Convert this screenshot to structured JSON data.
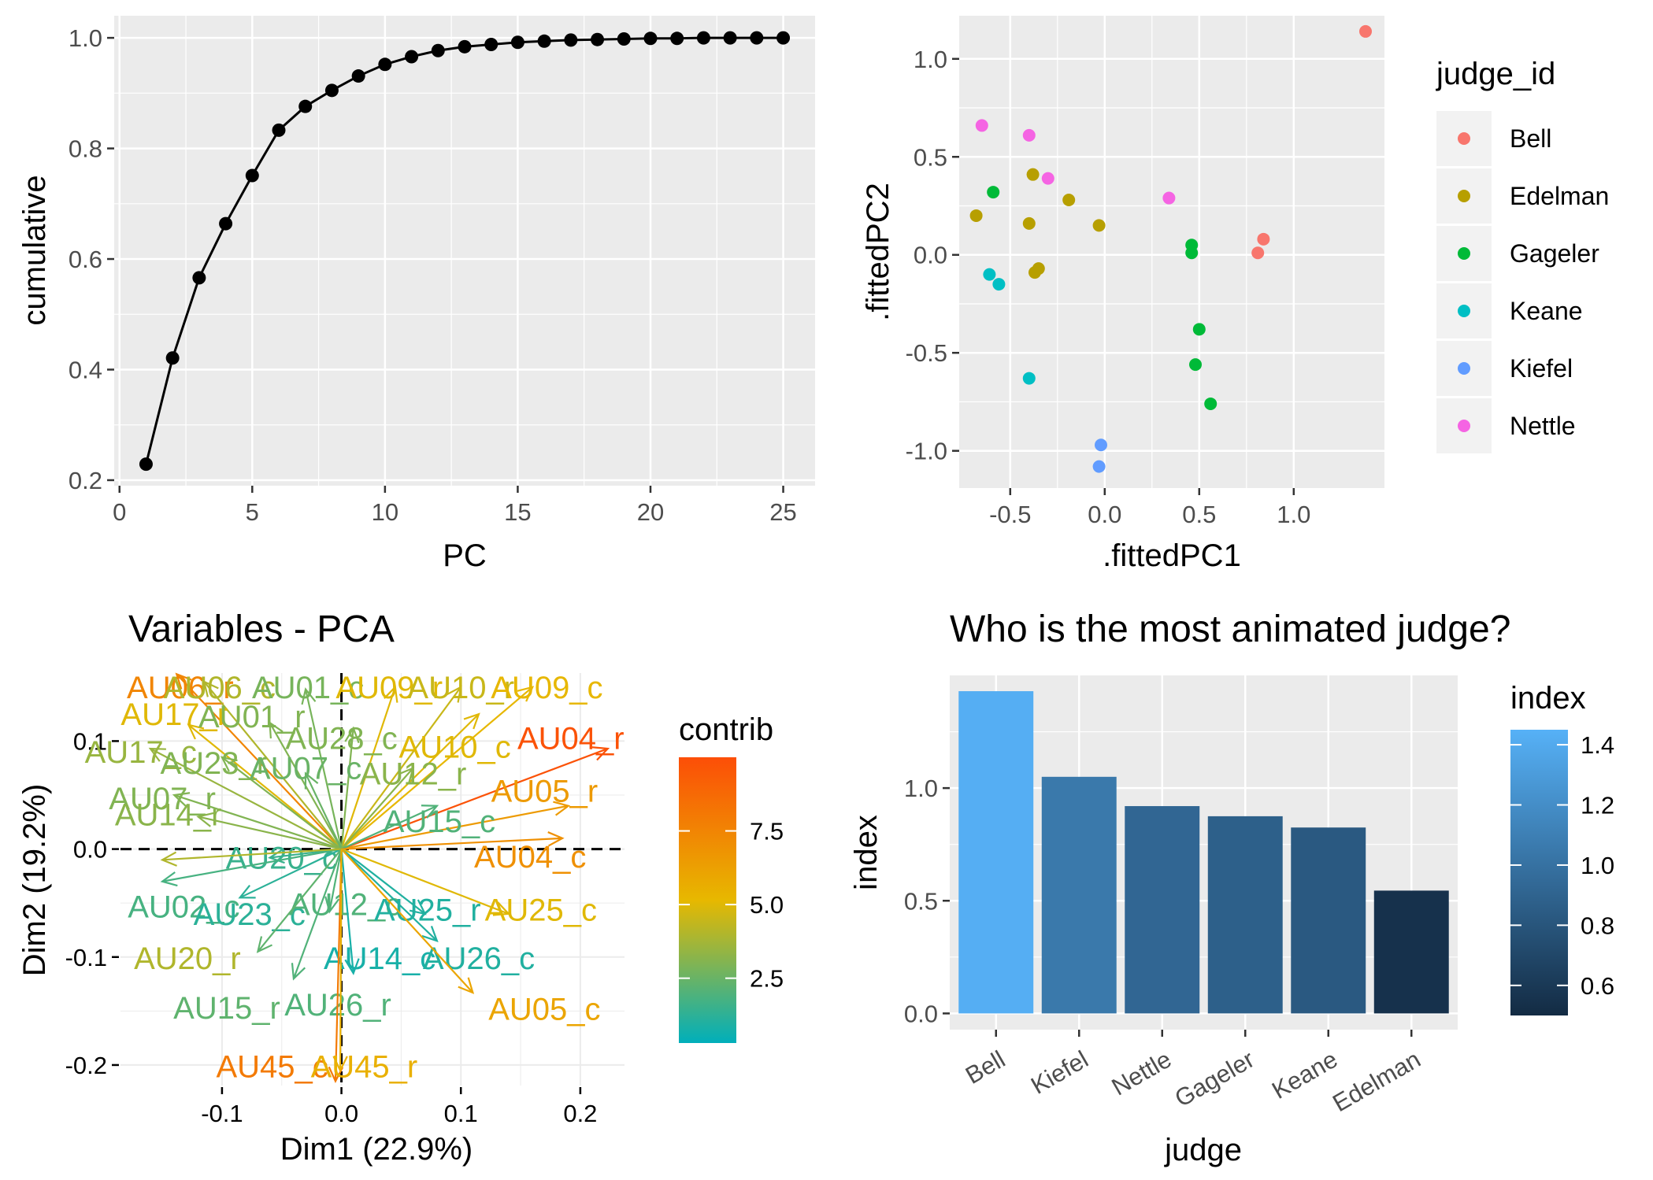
{
  "chart_data": [
    {
      "type": "line",
      "title": "",
      "xlabel": "PC",
      "ylabel": "cumulative",
      "x": [
        1,
        2,
        3,
        4,
        5,
        6,
        7,
        8,
        9,
        10,
        11,
        12,
        13,
        14,
        15,
        16,
        17,
        18,
        19,
        20,
        21,
        22,
        23,
        24,
        25
      ],
      "y": [
        0.229,
        0.421,
        0.566,
        0.664,
        0.751,
        0.833,
        0.876,
        0.905,
        0.931,
        0.952,
        0.966,
        0.977,
        0.984,
        0.988,
        0.992,
        0.994,
        0.996,
        0.997,
        0.998,
        0.999,
        0.999,
        1.0,
        1.0,
        1.0,
        1.0
      ],
      "xlim": [
        -0.2,
        26.2
      ],
      "ylim": [
        0.19,
        1.04
      ],
      "x_ticks": [
        0,
        5,
        10,
        15,
        20,
        25
      ],
      "x_tick_labels": [
        "0",
        "5",
        "10",
        "15",
        "20",
        "25"
      ],
      "y_ticks": [
        0.2,
        0.4,
        0.6,
        0.8,
        1.0
      ],
      "y_tick_labels": [
        "0.2",
        "0.4",
        "0.6",
        "0.8",
        "1.0"
      ],
      "grid": true
    },
    {
      "type": "scatter",
      "title": "",
      "xlabel": ".fittedPC1",
      "ylabel": ".fittedPC2",
      "xlim": [
        -0.77,
        1.48
      ],
      "ylim": [
        -1.19,
        1.22
      ],
      "x_ticks": [
        -0.5,
        0,
        0.5,
        1.0
      ],
      "x_tick_labels": [
        "-0.5",
        "0.0",
        "0.5",
        "1.0"
      ],
      "y_ticks": [
        -1.0,
        -0.5,
        0,
        0.5,
        1.0
      ],
      "y_tick_labels": [
        "-1.0",
        "-0.5",
        "0.0",
        "0.5",
        "1.0"
      ],
      "legend_title": "judge_id",
      "legend_position": "right",
      "series": [
        {
          "name": "Bell",
          "color": "#F8766D",
          "points": [
            [
              1.38,
              1.14
            ],
            [
              0.84,
              0.08
            ],
            [
              0.81,
              0.01
            ]
          ]
        },
        {
          "name": "Edelman",
          "color": "#B79F00",
          "points": [
            [
              -0.68,
              0.2
            ],
            [
              -0.38,
              0.41
            ],
            [
              -0.4,
              0.16
            ],
            [
              -0.19,
              0.28
            ],
            [
              -0.03,
              0.15
            ],
            [
              -0.35,
              -0.07
            ],
            [
              -0.37,
              -0.09
            ]
          ]
        },
        {
          "name": "Gageler",
          "color": "#00BA38",
          "points": [
            [
              -0.59,
              0.32
            ],
            [
              0.46,
              0.05
            ],
            [
              0.46,
              0.01
            ],
            [
              0.5,
              -0.38
            ],
            [
              0.48,
              -0.56
            ],
            [
              0.56,
              -0.76
            ]
          ]
        },
        {
          "name": "Keane",
          "color": "#00BFC4",
          "points": [
            [
              -0.61,
              -0.1
            ],
            [
              -0.56,
              -0.15
            ],
            [
              -0.4,
              -0.63
            ]
          ]
        },
        {
          "name": "Kiefel",
          "color": "#619CFF",
          "points": [
            [
              -0.02,
              -0.97
            ],
            [
              -0.03,
              -1.08
            ]
          ]
        },
        {
          "name": "Nettle",
          "color": "#F564E3",
          "points": [
            [
              -0.65,
              0.66
            ],
            [
              -0.4,
              0.61
            ],
            [
              -0.3,
              0.39
            ],
            [
              0.34,
              0.29
            ]
          ]
        }
      ],
      "grid": true
    },
    {
      "type": "scatter",
      "subtype": "pca-variable-arrows",
      "title": "Variables - PCA",
      "xlabel": "Dim1 (22.9%)",
      "ylabel": "Dim2 (19.2%)",
      "xlim": [
        -0.185,
        0.237
      ],
      "ylim": [
        -0.219,
        0.163
      ],
      "x_ticks": [
        -0.1,
        0,
        0.1,
        0.2
      ],
      "x_tick_labels": [
        "-0.1",
        "0.0",
        "0.1",
        "0.2"
      ],
      "y_ticks": [
        -0.2,
        -0.1,
        0,
        0.1
      ],
      "y_tick_labels": [
        "-0.2",
        "-0.1",
        "0.0",
        "0.1"
      ],
      "legend_title": "contrib",
      "legend_ticks": [
        2.5,
        5.0,
        7.5
      ],
      "legend_tick_labels": [
        "2.5",
        "5.0",
        "7.5"
      ],
      "contrib_range": [
        0.3,
        10.0
      ],
      "color_scale": [
        "#00AFBB",
        "#E7B800",
        "#FC4E07"
      ],
      "arrows": [
        {
          "label": "AU06_r",
          "x": -0.138,
          "y": 0.162,
          "contrib": 7.5,
          "lx": -0.135,
          "ly": 0.15
        },
        {
          "label": "AU06_c",
          "x": -0.115,
          "y": 0.155,
          "contrib": 4.0,
          "lx": -0.102,
          "ly": 0.15
        },
        {
          "label": "AU01_c",
          "x": -0.03,
          "y": 0.148,
          "contrib": 2.8,
          "lx": -0.028,
          "ly": 0.15
        },
        {
          "label": "AU09_r",
          "x": 0.045,
          "y": 0.15,
          "contrib": 5.0,
          "lx": 0.04,
          "ly": 0.15
        },
        {
          "label": "AU10_r",
          "x": 0.1,
          "y": 0.15,
          "contrib": 4.5,
          "lx": 0.1,
          "ly": 0.15
        },
        {
          "label": "AU09_c",
          "x": 0.16,
          "y": 0.15,
          "contrib": 5.2,
          "lx": 0.172,
          "ly": 0.15
        },
        {
          "label": "AU17_r",
          "x": -0.128,
          "y": 0.115,
          "contrib": 5.0,
          "lx": -0.14,
          "ly": 0.125
        },
        {
          "label": "AU01_r",
          "x": -0.06,
          "y": 0.117,
          "contrib": 3.0,
          "lx": -0.075,
          "ly": 0.123
        },
        {
          "label": "AU28_c",
          "x": 0.01,
          "y": 0.112,
          "contrib": 3.0,
          "lx": 0.0,
          "ly": 0.103
        },
        {
          "label": "AU10_c",
          "x": 0.115,
          "y": 0.125,
          "contrib": 5.0,
          "lx": 0.095,
          "ly": 0.095
        },
        {
          "label": "AU04_r",
          "x": 0.223,
          "y": 0.093,
          "contrib": 9.8,
          "lx": 0.192,
          "ly": 0.103
        },
        {
          "label": "AU17_c",
          "x": -0.16,
          "y": 0.093,
          "contrib": 3.5,
          "lx": -0.168,
          "ly": 0.09
        },
        {
          "label": "AU23_r",
          "x": -0.1,
          "y": 0.085,
          "contrib": 3.0,
          "lx": -0.107,
          "ly": 0.08
        },
        {
          "label": "AU07_c",
          "x": -0.03,
          "y": 0.07,
          "contrib": 2.5,
          "lx": -0.03,
          "ly": 0.075
        },
        {
          "label": "AU12_r",
          "x": 0.06,
          "y": 0.075,
          "contrib": 3.2,
          "lx": 0.06,
          "ly": 0.07
        },
        {
          "label": "AU05_r",
          "x": 0.19,
          "y": 0.04,
          "contrib": 6.5,
          "lx": 0.17,
          "ly": 0.054
        },
        {
          "label": "AU07_r",
          "x": -0.14,
          "y": 0.05,
          "contrib": 3.0,
          "lx": -0.15,
          "ly": 0.047
        },
        {
          "label": "AU14_r",
          "x": -0.12,
          "y": 0.03,
          "contrib": 3.2,
          "lx": -0.145,
          "ly": 0.032
        },
        {
          "label": "AU15_c",
          "x": 0.08,
          "y": 0.04,
          "contrib": 2.0,
          "lx": 0.082,
          "ly": 0.026
        },
        {
          "label": "AU04_c",
          "x": 0.185,
          "y": 0.01,
          "contrib": 7.0,
          "lx": 0.158,
          "ly": -0.007
        },
        {
          "label": "AU20_c",
          "x": -0.06,
          "y": -0.008,
          "contrib": 1.5,
          "lx": -0.05,
          "ly": -0.008
        },
        {
          "label": "AU02_c",
          "x": -0.15,
          "y": -0.03,
          "contrib": 1.8,
          "lx": -0.132,
          "ly": -0.053
        },
        {
          "label": "AU23_c",
          "x": -0.085,
          "y": -0.045,
          "contrib": 1.2,
          "lx": -0.077,
          "ly": -0.06
        },
        {
          "label": "AU12_c",
          "x": -0.01,
          "y": -0.058,
          "contrib": 2.0,
          "lx": 0.003,
          "ly": -0.051
        },
        {
          "label": "AU25_r",
          "x": 0.07,
          "y": -0.06,
          "contrib": 1.0,
          "lx": 0.072,
          "ly": -0.056
        },
        {
          "label": "AU25_c",
          "x": 0.14,
          "y": -0.06,
          "contrib": 5.0,
          "lx": 0.167,
          "ly": -0.056
        },
        {
          "label": "AU14_c",
          "x": 0.01,
          "y": -0.115,
          "contrib": 0.8,
          "lx": 0.032,
          "ly": -0.101
        },
        {
          "label": "AU26_c",
          "x": 0.08,
          "y": -0.085,
          "contrib": 1.0,
          "lx": 0.115,
          "ly": -0.101
        },
        {
          "label": "AU05_c",
          "x": 0.11,
          "y": -0.133,
          "contrib": 6.0,
          "lx": 0.17,
          "ly": -0.148
        },
        {
          "label": "AU20_r",
          "x": -0.15,
          "y": -0.01,
          "contrib": 4.0,
          "lx": -0.129,
          "ly": -0.101
        },
        {
          "label": "AU15_r",
          "x": -0.07,
          "y": -0.095,
          "contrib": 2.3,
          "lx": -0.096,
          "ly": -0.147
        },
        {
          "label": "AU26_r",
          "x": -0.04,
          "y": -0.12,
          "contrib": 2.0,
          "lx": -0.003,
          "ly": -0.144
        },
        {
          "label": "AU45_c",
          "x": -0.005,
          "y": -0.215,
          "contrib": 8.0,
          "lx": -0.058,
          "ly": -0.201
        },
        {
          "label": "AU45_r",
          "x": -0.001,
          "y": -0.205,
          "contrib": 5.5,
          "lx": 0.019,
          "ly": -0.201
        }
      ],
      "grid": true
    },
    {
      "type": "bar",
      "title": "Who is the most animated judge?",
      "xlabel": "judge",
      "ylabel": "index",
      "categories": [
        "Bell",
        "Kiefel",
        "Nettle",
        "Gageler",
        "Keane",
        "Edelman"
      ],
      "values": [
        1.43,
        1.05,
        0.92,
        0.875,
        0.825,
        0.545
      ],
      "ylim": [
        -0.072,
        1.5
      ],
      "y_ticks": [
        0,
        0.5,
        1.0
      ],
      "y_tick_labels": [
        "0.0",
        "0.5",
        "1.0"
      ],
      "legend_title": "index",
      "legend_ticks": [
        0.6,
        0.8,
        1.0,
        1.2,
        1.4
      ],
      "legend_tick_labels": [
        "0.6",
        "0.8",
        "1.0",
        "1.2",
        "1.4"
      ],
      "color_low": "#132B43",
      "color_high": "#56B1F7",
      "grid": true
    }
  ]
}
